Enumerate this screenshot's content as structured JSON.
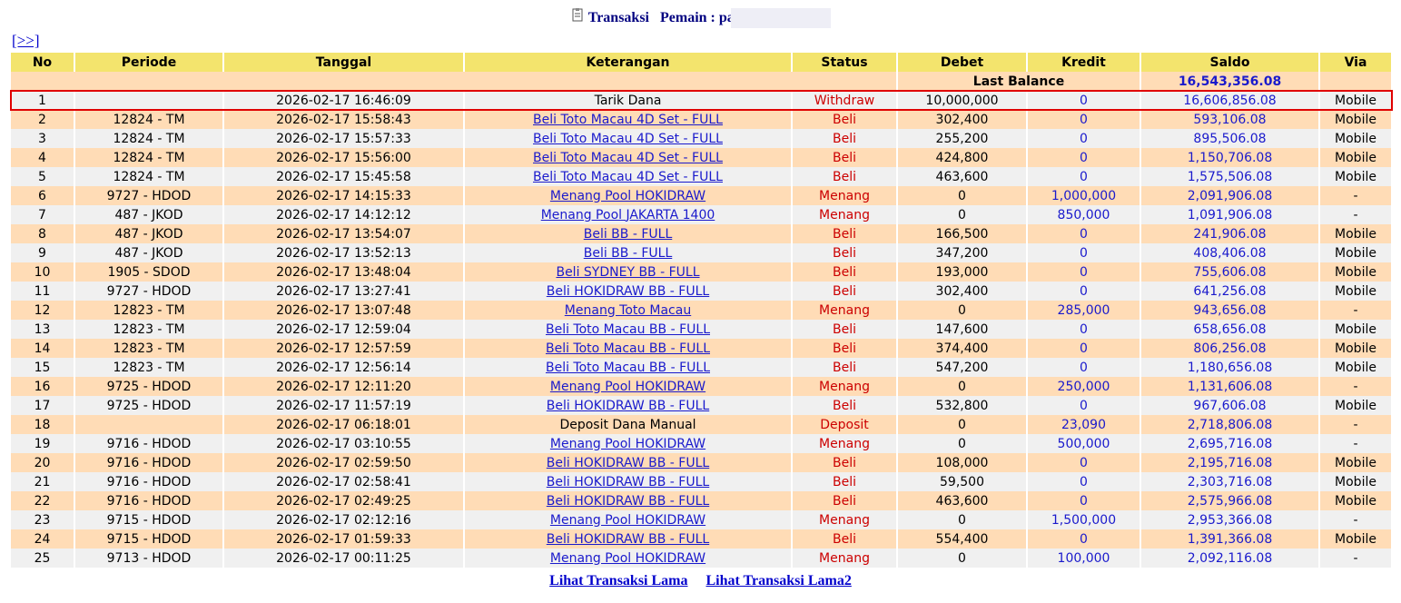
{
  "header": {
    "title": "Transaksi",
    "player": "Pemain : pa"
  },
  "nav": "[>>]",
  "table": {
    "columns": [
      "No",
      "Periode",
      "Tanggal",
      "Keterangan",
      "Status",
      "Debet",
      "Kredit",
      "Saldo",
      "Via"
    ],
    "last_balance": {
      "label": "Last Balance",
      "value": "16,543,356.08"
    },
    "highlight_row": 0,
    "rows": [
      [
        "1",
        null,
        "2026-02-17 16:46:09",
        "Tarik Dana",
        "Withdraw",
        "10,000,000",
        "0",
        "16,606,856.08",
        "Mobile"
      ],
      [
        "2",
        "12824 - TM",
        "2026-02-17 15:58:43",
        "Beli Toto Macau 4D Set - FULL",
        "Beli",
        "302,400",
        "0",
        "593,106.08",
        "Mobile"
      ],
      [
        "3",
        "12824 - TM",
        "2026-02-17 15:57:33",
        "Beli Toto Macau 4D Set - FULL",
        "Beli",
        "255,200",
        "0",
        "895,506.08",
        "Mobile"
      ],
      [
        "4",
        "12824 - TM",
        "2026-02-17 15:56:00",
        "Beli Toto Macau 4D Set - FULL",
        "Beli",
        "424,800",
        "0",
        "1,150,706.08",
        "Mobile"
      ],
      [
        "5",
        "12824 - TM",
        "2026-02-17 15:45:58",
        "Beli Toto Macau 4D Set - FULL",
        "Beli",
        "463,600",
        "0",
        "1,575,506.08",
        "Mobile"
      ],
      [
        "6",
        "9727 - HDOD",
        "2026-02-17 14:15:33",
        "Menang Pool HOKIDRAW",
        "Menang",
        "0",
        "1,000,000",
        "2,091,906.08",
        "-"
      ],
      [
        "7",
        "487 - JKOD",
        "2026-02-17 14:12:12",
        "Menang Pool JAKARTA 1400",
        "Menang",
        "0",
        "850,000",
        "1,091,906.08",
        "-"
      ],
      [
        "8",
        "487 - JKOD",
        "2026-02-17 13:54:07",
        "Beli BB - FULL",
        "Beli",
        "166,500",
        "0",
        "241,906.08",
        "Mobile"
      ],
      [
        "9",
        "487 - JKOD",
        "2026-02-17 13:52:13",
        "Beli BB - FULL",
        "Beli",
        "347,200",
        "0",
        "408,406.08",
        "Mobile"
      ],
      [
        "10",
        "1905 - SDOD",
        "2026-02-17 13:48:04",
        "Beli SYDNEY BB - FULL",
        "Beli",
        "193,000",
        "0",
        "755,606.08",
        "Mobile"
      ],
      [
        "11",
        "9727 - HDOD",
        "2026-02-17 13:27:41",
        "Beli HOKIDRAW BB - FULL",
        "Beli",
        "302,400",
        "0",
        "641,256.08",
        "Mobile"
      ],
      [
        "12",
        "12823 - TM",
        "2026-02-17 13:07:48",
        "Menang Toto Macau",
        "Menang",
        "0",
        "285,000",
        "943,656.08",
        "-"
      ],
      [
        "13",
        "12823 - TM",
        "2026-02-17 12:59:04",
        "Beli Toto Macau BB - FULL",
        "Beli",
        "147,600",
        "0",
        "658,656.08",
        "Mobile"
      ],
      [
        "14",
        "12823 - TM",
        "2026-02-17 12:57:59",
        "Beli Toto Macau BB - FULL",
        "Beli",
        "374,400",
        "0",
        "806,256.08",
        "Mobile"
      ],
      [
        "15",
        "12823 - TM",
        "2026-02-17 12:56:14",
        "Beli Toto Macau BB - FULL",
        "Beli",
        "547,200",
        "0",
        "1,180,656.08",
        "Mobile"
      ],
      [
        "16",
        "9725 - HDOD",
        "2026-02-17 12:11:20",
        "Menang Pool HOKIDRAW",
        "Menang",
        "0",
        "250,000",
        "1,131,606.08",
        "-"
      ],
      [
        "17",
        "9725 - HDOD",
        "2026-02-17 11:57:19",
        "Beli HOKIDRAW BB - FULL",
        "Beli",
        "532,800",
        "0",
        "967,606.08",
        "Mobile"
      ],
      [
        "18",
        null,
        "2026-02-17 06:18:01",
        "Deposit Dana Manual",
        "Deposit",
        "0",
        "23,090",
        "2,718,806.08",
        "-"
      ],
      [
        "19",
        "9716 - HDOD",
        "2026-02-17 03:10:55",
        "Menang Pool HOKIDRAW",
        "Menang",
        "0",
        "500,000",
        "2,695,716.08",
        "-"
      ],
      [
        "20",
        "9716 - HDOD",
        "2026-02-17 02:59:50",
        "Beli HOKIDRAW BB - FULL",
        "Beli",
        "108,000",
        "0",
        "2,195,716.08",
        "Mobile"
      ],
      [
        "21",
        "9716 - HDOD",
        "2026-02-17 02:58:41",
        "Beli HOKIDRAW BB - FULL",
        "Beli",
        "59,500",
        "0",
        "2,303,716.08",
        "Mobile"
      ],
      [
        "22",
        "9716 - HDOD",
        "2026-02-17 02:49:25",
        "Beli HOKIDRAW BB - FULL",
        "Beli",
        "463,600",
        "0",
        "2,575,966.08",
        "Mobile"
      ],
      [
        "23",
        "9715 - HDOD",
        "2026-02-17 02:12:16",
        "Menang Pool HOKIDRAW",
        "Menang",
        "0",
        "1,500,000",
        "2,953,366.08",
        "-"
      ],
      [
        "24",
        "9715 - HDOD",
        "2026-02-17 01:59:33",
        "Beli HOKIDRAW BB - FULL",
        "Beli",
        "554,400",
        "0",
        "1,391,366.08",
        "Mobile"
      ],
      [
        "25",
        "9713 - HDOD",
        "2026-02-17 00:11:25",
        "Menang Pool HOKIDRAW",
        "Menang",
        "0",
        "100,000",
        "2,092,116.08",
        "-"
      ]
    ],
    "linked": [
      false,
      true,
      true,
      true,
      true,
      true,
      true,
      true,
      true,
      true,
      true,
      true,
      true,
      true,
      true,
      true,
      true,
      false,
      true,
      true,
      true,
      true,
      true,
      true,
      true
    ]
  },
  "footer": {
    "links": [
      "Lihat Transaksi Lama",
      "Lihat Transaksi Lama2"
    ]
  }
}
